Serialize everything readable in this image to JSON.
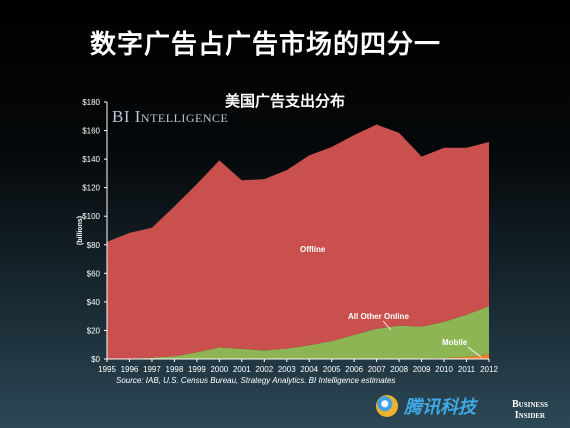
{
  "slide": {
    "title": "数字广告占广告市场的四分一",
    "source": "Source: IAB, U.S. Census Bureau, Strategy Analytics. BI Intelligence estimates",
    "watermark": "BI Intelligence",
    "tencent_text": "腾讯科技",
    "bi_brand_line1": "Business",
    "bi_brand_line2": "Insider"
  },
  "chart_data": {
    "type": "area",
    "stacked": true,
    "title": "美国广告支出分布",
    "xlabel": "",
    "ylabel": "(billions)",
    "x": [
      "1995",
      "1996",
      "1997",
      "1998",
      "1999",
      "2000",
      "2001",
      "2002",
      "2003",
      "2004",
      "2005",
      "2006",
      "2007",
      "2008",
      "2009",
      "2010",
      "2011",
      "2012"
    ],
    "ylim": [
      0,
      180
    ],
    "yticks": [
      "$0",
      "$20",
      "$40",
      "$60",
      "$80",
      "$100",
      "$120",
      "$140",
      "$160",
      "$180"
    ],
    "grid": false,
    "series": [
      {
        "name": "Mobile",
        "color": "#e8822e",
        "values": [
          0,
          0,
          0,
          0,
          0,
          0,
          0,
          0,
          0,
          0,
          0,
          0,
          0,
          0,
          0.3,
          0.6,
          1.5,
          3.3
        ]
      },
      {
        "name": "All Other Online",
        "color": "#8db553",
        "values": [
          0,
          0.3,
          0.9,
          1.9,
          4.6,
          8.1,
          7.1,
          6.0,
          7.3,
          9.6,
          12.5,
          16.9,
          21.2,
          23.4,
          22.4,
          25.4,
          29.5,
          33.7
        ]
      },
      {
        "name": "Offline",
        "color": "#c9504d",
        "values": [
          82,
          88,
          91,
          105,
          118,
          131,
          118,
          120,
          125,
          133,
          136,
          140,
          143,
          135,
          119,
          122,
          117,
          115
        ]
      }
    ],
    "labels": [
      {
        "text": "Offline"
      },
      {
        "text": "All Other Online"
      },
      {
        "text": "Mobile"
      }
    ]
  }
}
